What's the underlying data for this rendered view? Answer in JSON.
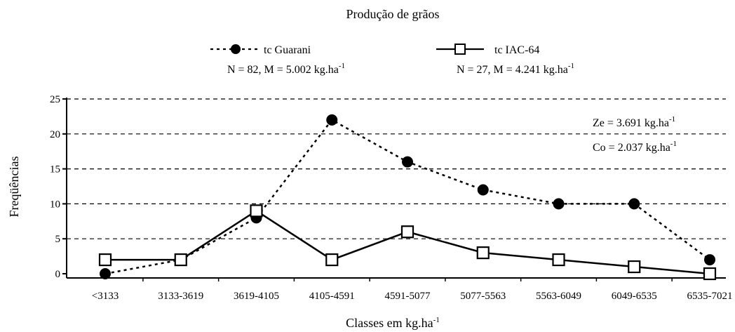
{
  "chart_data": {
    "type": "line",
    "title": "Produção de grãos",
    "x_label": {
      "text": "Classes em kg.ha",
      "sup": "-1"
    },
    "y_label": "Freqüências",
    "categories": [
      "<3133",
      "3133-3619",
      "3619-4105",
      "4105-4591",
      "4591-5077",
      "5077-5563",
      "5563-6049",
      "6049-6535",
      "6535-7021"
    ],
    "series": [
      {
        "name": "tc Guarani",
        "color": "#000000",
        "line_style": "dotted",
        "marker": "circle",
        "values": [
          0,
          2,
          8,
          22,
          16,
          12,
          10,
          10,
          2
        ],
        "note": {
          "text": "N = 82, M = 5.002 kg.ha",
          "sup": "-1"
        }
      },
      {
        "name": "tc IAC-64",
        "color": "#000000",
        "line_style": "solid",
        "marker": "square",
        "values": [
          2,
          2,
          9,
          2,
          6,
          3,
          2,
          1,
          0
        ],
        "note": {
          "text": "N = 27, M = 4.241 kg.ha",
          "sup": "-1"
        }
      }
    ],
    "annotations": [
      {
        "text": "Ze = 3.691 kg.ha",
        "sup": "-1"
      },
      {
        "text": "Co = 2.037 kg.ha",
        "sup": "-1"
      }
    ],
    "ylim": [
      0,
      25
    ],
    "yticks": [
      0,
      5,
      10,
      15,
      20,
      25
    ],
    "grid": true
  }
}
